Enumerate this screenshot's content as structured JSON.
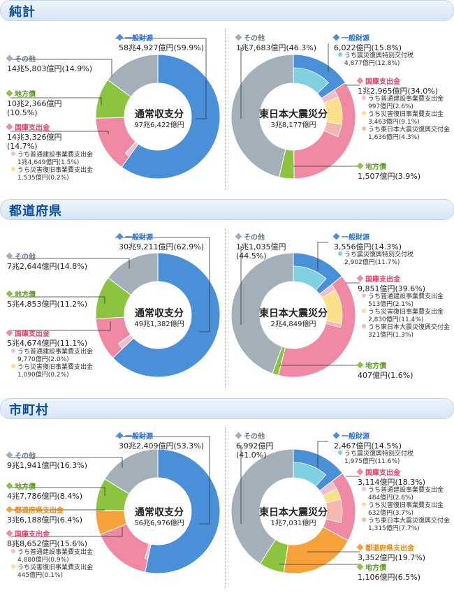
{
  "colors": {
    "general": "#4a90d9",
    "chiho": "#8cc43f",
    "kokko": "#f08aa4",
    "other": "#a3b0ba",
    "todofuken": "#f7a13a",
    "sub_general": "#7fd0e0",
    "sub_kokko1": "#f5bcd0",
    "sub_kokko2": "#fbe08a",
    "sub_kokko3": "#f4b8b0",
    "head_text": "#0a4e9b",
    "general_cat": "#2a6fc9",
    "other_cat": "#6a7a88",
    "chiho_cat": "#5a9e1f",
    "kokko_cat": "#e0446a",
    "todofuken_cat": "#e88a10"
  },
  "sections": {
    "s0": {
      "title": "純計"
    },
    "s1": {
      "title": "都道府県"
    },
    "s2": {
      "title": "市町村"
    }
  },
  "labels": {
    "l0_ig": {
      "cat": "一般財源",
      "val": "58兆4,927億円(59.9%)"
    },
    "l0_io": {
      "cat": "その他",
      "val": "14兆5,803億円(14.9%)"
    },
    "l0_ic": {
      "cat": "地方債",
      "val": "10兆2,366億円",
      "val2": "(10.5%)"
    },
    "l0_ik": {
      "cat": "国庫支出金",
      "val": "14兆3,326億円",
      "val2": "(14.7%)",
      "sub1": "うち普通建設事業費支出金",
      "sub1v": "1兆4,649億円(1.5%)",
      "sub2": "うち災害復旧事業費支出金",
      "sub2v": "1,535億円(0.2%)"
    },
    "l0_ctr": {
      "title": "通常収支分",
      "val": "97兆6,422億円"
    },
    "l0_eo": {
      "cat": "その他",
      "val": "1兆7,683億円(46.3%)"
    },
    "l0_eg": {
      "cat": "一般財源",
      "val": "6,022億円(15.8%)",
      "sub1": "うち震災復興特別交付税",
      "sub1v": "4,877億円(12.8%)"
    },
    "l0_ek": {
      "cat": "国庫支出金",
      "val": "1兆2,965億円(34.0%)",
      "sub1": "うち普通建設事業費支出金",
      "sub1v": "997億円(2.6%)",
      "sub2": "うち災害復旧事業費支出金",
      "sub2v": "3,463億円(9.1%)",
      "sub3": "うち東日本大震災復興交付金",
      "sub3v": "1,636億円(4.3%)"
    },
    "l0_ec": {
      "cat": "地方債",
      "val": "1,507億円(3.9%)"
    },
    "l0_ectr": {
      "title": "東日本大震災分",
      "val": "3兆8,177億円"
    },
    "l1_ig": {
      "cat": "一般財源",
      "val": "30兆9,211億円(62.9%)"
    },
    "l1_io": {
      "cat": "その他",
      "val": "7兆2,644億円(14.8%)"
    },
    "l1_ic": {
      "cat": "地方債",
      "val": "5兆4,853億円(11.2%)"
    },
    "l1_ik": {
      "cat": "国庫支出金",
      "val": "5兆4,674億円(11.1%)",
      "sub1": "うち普通建設事業費支出金",
      "sub1v": "9,770億円(2.0%)",
      "sub2": "うち災害復旧事業費支出金",
      "sub2v": "1,090億円(0.2%)"
    },
    "l1_ctr": {
      "title": "通常収支分",
      "val": "49兆1,382億円"
    },
    "l1_eo": {
      "cat": "その他",
      "val": "1兆1,035億円",
      "val2": "(44.5%)"
    },
    "l1_eg": {
      "cat": "一般財源",
      "val": "3,556億円(14.3%)",
      "sub1": "うち震災復興特別交付税",
      "sub1v": "2,902億円(11.7%)"
    },
    "l1_ek": {
      "cat": "国庫支出金",
      "val": "9,851億円(39.6%)",
      "sub1": "うち普通建設事業費支出金",
      "sub1v": "513億円(2.1%)",
      "sub2": "うち災害復旧事業費支出金",
      "sub2v": "2,830億円(11.4%)",
      "sub3": "うち東日本大震災復興交付金",
      "sub3v": "321億円(1.3%)"
    },
    "l1_ec": {
      "cat": "地方債",
      "val": "407億円(1.6%)"
    },
    "l1_ectr": {
      "title": "東日本大震災分",
      "val": "2兆4,849億円"
    },
    "l2_ig": {
      "cat": "一般財源",
      "val": "30兆2,409億円(53.3%)"
    },
    "l2_io": {
      "cat": "その他",
      "val": "9兆1,941億円(16.3%)"
    },
    "l2_ic": {
      "cat": "地方債",
      "val": "4兆7,786億円(8.4%)"
    },
    "l2_it": {
      "cat": "都道府県支出金",
      "val": "3兆6,188億円(6.4%)"
    },
    "l2_ik": {
      "cat": "国庫支出金",
      "val": "8兆8,652億円(15.6%)",
      "sub1": "うち普通建設事業費支出金",
      "sub1v": "4,880億円(0.9%)",
      "sub2": "うち災害復旧事業費支出金",
      "sub2v": "445億円(0.1%)"
    },
    "l2_ctr": {
      "title": "通常収支分",
      "val": "56兆6,976億円"
    },
    "l2_eo": {
      "cat": "その他",
      "val": "6,992億円",
      "val2": "(41.0%)"
    },
    "l2_eg": {
      "cat": "一般財源",
      "val": "2,467億円(14.5%)",
      "sub1": "うち震災復興特別交付税",
      "sub1v": "1,975億円(11.6%)"
    },
    "l2_ek": {
      "cat": "国庫支出金",
      "val": "3,114億円(18.3%)",
      "sub1": "うち普通建設事業費支出金",
      "sub1v": "484億円(2.8%)",
      "sub2": "うち災害復旧事業費支出金",
      "sub2v": "632億円(3.7%)",
      "sub3": "うち東日本大震災復興交付金",
      "sub3v": "1,315億円(7.7%)"
    },
    "l2_et": {
      "cat": "都道府県支出金",
      "val": "3,352億円(19.7%)"
    },
    "l2_ec": {
      "cat": "地方債",
      "val": "1,106億円(6.5%)"
    },
    "l2_ectr": {
      "title": "東日本大震災分",
      "val": "1兆7,031億円"
    }
  },
  "chart_data": [
    {
      "type": "pie",
      "section": "純計",
      "center": "通常収支分",
      "series": [
        {
          "name": "一般財源",
          "value": 59.9,
          "color": "general"
        },
        {
          "name": "国庫支出金",
          "value": 14.7,
          "color": "kokko",
          "subs": [
            {
              "name": "うち普通建設事業費支出金",
              "value": 1.5,
              "color": "sub_kokko1"
            },
            {
              "name": "うち災害復旧事業費支出金",
              "value": 0.2,
              "color": "sub_kokko2"
            }
          ]
        },
        {
          "name": "地方債",
          "value": 10.5,
          "color": "chiho"
        },
        {
          "name": "その他",
          "value": 14.9,
          "color": "other"
        }
      ]
    },
    {
      "type": "pie",
      "section": "純計",
      "center": "東日本大震災分",
      "series": [
        {
          "name": "一般財源",
          "value": 15.8,
          "color": "general",
          "subs": [
            {
              "name": "うち震災復興特別交付税",
              "value": 12.8,
              "color": "sub_general"
            }
          ]
        },
        {
          "name": "国庫支出金",
          "value": 34.0,
          "color": "kokko",
          "subs": [
            {
              "name": "うち普通建設事業費支出金",
              "value": 2.6,
              "color": "sub_kokko1"
            },
            {
              "name": "うち災害復旧事業費支出金",
              "value": 9.1,
              "color": "sub_kokko2"
            },
            {
              "name": "うち東日本大震災復興交付金",
              "value": 4.3,
              "color": "sub_kokko3"
            }
          ]
        },
        {
          "name": "地方債",
          "value": 3.9,
          "color": "chiho"
        },
        {
          "name": "その他",
          "value": 46.3,
          "color": "other"
        }
      ]
    },
    {
      "type": "pie",
      "section": "都道府県",
      "center": "通常収支分",
      "series": [
        {
          "name": "一般財源",
          "value": 62.9,
          "color": "general"
        },
        {
          "name": "国庫支出金",
          "value": 11.1,
          "color": "kokko",
          "subs": [
            {
              "name": "うち普通建設事業費支出金",
              "value": 2.0,
              "color": "sub_kokko1"
            },
            {
              "name": "うち災害復旧事業費支出金",
              "value": 0.2,
              "color": "sub_kokko2"
            }
          ]
        },
        {
          "name": "地方債",
          "value": 11.2,
          "color": "chiho"
        },
        {
          "name": "その他",
          "value": 14.8,
          "color": "other"
        }
      ]
    },
    {
      "type": "pie",
      "section": "都道府県",
      "center": "東日本大震災分",
      "series": [
        {
          "name": "一般財源",
          "value": 14.3,
          "color": "general",
          "subs": [
            {
              "name": "うち震災復興特別交付税",
              "value": 11.7,
              "color": "sub_general"
            }
          ]
        },
        {
          "name": "国庫支出金",
          "value": 39.6,
          "color": "kokko",
          "subs": [
            {
              "name": "うち普通建設事業費支出金",
              "value": 2.1,
              "color": "sub_kokko1"
            },
            {
              "name": "うち災害復旧事業費支出金",
              "value": 11.4,
              "color": "sub_kokko2"
            },
            {
              "name": "うち東日本大震災復興交付金",
              "value": 1.3,
              "color": "sub_kokko3"
            }
          ]
        },
        {
          "name": "地方債",
          "value": 1.6,
          "color": "chiho"
        },
        {
          "name": "その他",
          "value": 44.5,
          "color": "other"
        }
      ]
    },
    {
      "type": "pie",
      "section": "市町村",
      "center": "通常収支分",
      "series": [
        {
          "name": "一般財源",
          "value": 53.3,
          "color": "general"
        },
        {
          "name": "国庫支出金",
          "value": 15.6,
          "color": "kokko",
          "subs": [
            {
              "name": "うち普通建設事業費支出金",
              "value": 0.9,
              "color": "sub_kokko1"
            },
            {
              "name": "うち災害復旧事業費支出金",
              "value": 0.1,
              "color": "sub_kokko2"
            }
          ]
        },
        {
          "name": "都道府県支出金",
          "value": 6.4,
          "color": "todofuken"
        },
        {
          "name": "地方債",
          "value": 8.4,
          "color": "chiho"
        },
        {
          "name": "その他",
          "value": 16.3,
          "color": "other"
        }
      ]
    },
    {
      "type": "pie",
      "section": "市町村",
      "center": "東日本大震災分",
      "series": [
        {
          "name": "一般財源",
          "value": 14.5,
          "color": "general",
          "subs": [
            {
              "name": "うち震災復興特別交付税",
              "value": 11.6,
              "color": "sub_general"
            }
          ]
        },
        {
          "name": "国庫支出金",
          "value": 18.3,
          "color": "kokko",
          "subs": [
            {
              "name": "うち普通建設事業費支出金",
              "value": 2.8,
              "color": "sub_kokko1"
            },
            {
              "name": "うち災害復旧事業費支出金",
              "value": 3.7,
              "color": "sub_kokko2"
            },
            {
              "name": "うち東日本大震災復興交付金",
              "value": 7.7,
              "color": "sub_kokko3"
            }
          ]
        },
        {
          "name": "都道府県支出金",
          "value": 19.7,
          "color": "todofuken"
        },
        {
          "name": "地方債",
          "value": 6.5,
          "color": "chiho"
        },
        {
          "name": "その他",
          "value": 41.0,
          "color": "other"
        }
      ]
    }
  ]
}
